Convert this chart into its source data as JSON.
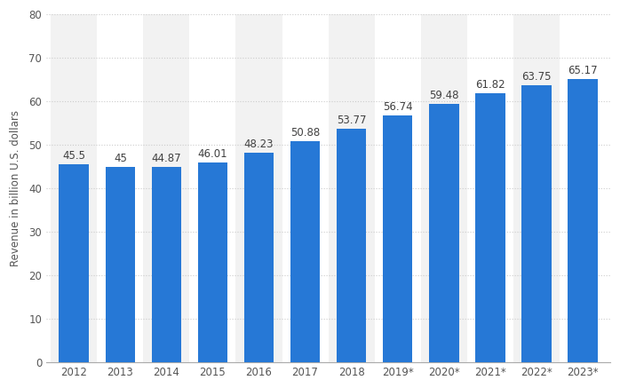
{
  "categories": [
    "2012",
    "2013",
    "2014",
    "2015",
    "2016",
    "2017",
    "2018",
    "2019*",
    "2020*",
    "2021*",
    "2022*",
    "2023*"
  ],
  "values": [
    45.5,
    45.0,
    44.87,
    46.01,
    48.23,
    50.88,
    53.77,
    56.74,
    59.48,
    61.82,
    63.75,
    65.17
  ],
  "labels": [
    "45.5",
    "45",
    "44.87",
    "46.01",
    "48.23",
    "50.88",
    "53.77",
    "56.74",
    "59.48",
    "61.82",
    "63.75",
    "65.17"
  ],
  "bar_color": "#2678D6",
  "ylabel": "Revenue in billion U.S. dollars",
  "ylim": [
    0,
    80
  ],
  "yticks": [
    0,
    10,
    20,
    30,
    40,
    50,
    60,
    70,
    80
  ],
  "background_color": "#ffffff",
  "plot_bg_color": "#ffffff",
  "col_bg_odd": "#f2f2f2",
  "col_bg_even": "#ffffff",
  "grid_color": "#cccccc",
  "label_fontsize": 8.5,
  "axis_fontsize": 8.5,
  "bar_label_fontsize": 8.5,
  "bar_width": 0.65
}
